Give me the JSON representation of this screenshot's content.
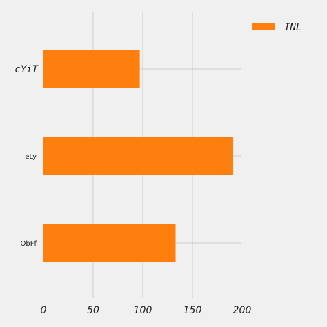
{
  "chart_data": {
    "type": "bar",
    "orientation": "horizontal",
    "categories": [
      "cYiT",
      "eLy",
      "ObFf"
    ],
    "series": [
      {
        "name": "INL",
        "values": [
          97,
          191,
          133
        ]
      }
    ],
    "xlim": [
      0,
      200
    ],
    "xticks": [
      "0",
      "50",
      "100",
      "150",
      "200"
    ],
    "title": "",
    "xlabel": "",
    "ylabel": "",
    "grid": true,
    "legend_position": "top-right",
    "colors": {
      "bar": "#ff7f0e",
      "background": "#f0f0f0",
      "grid": "#cbcbcb"
    }
  }
}
